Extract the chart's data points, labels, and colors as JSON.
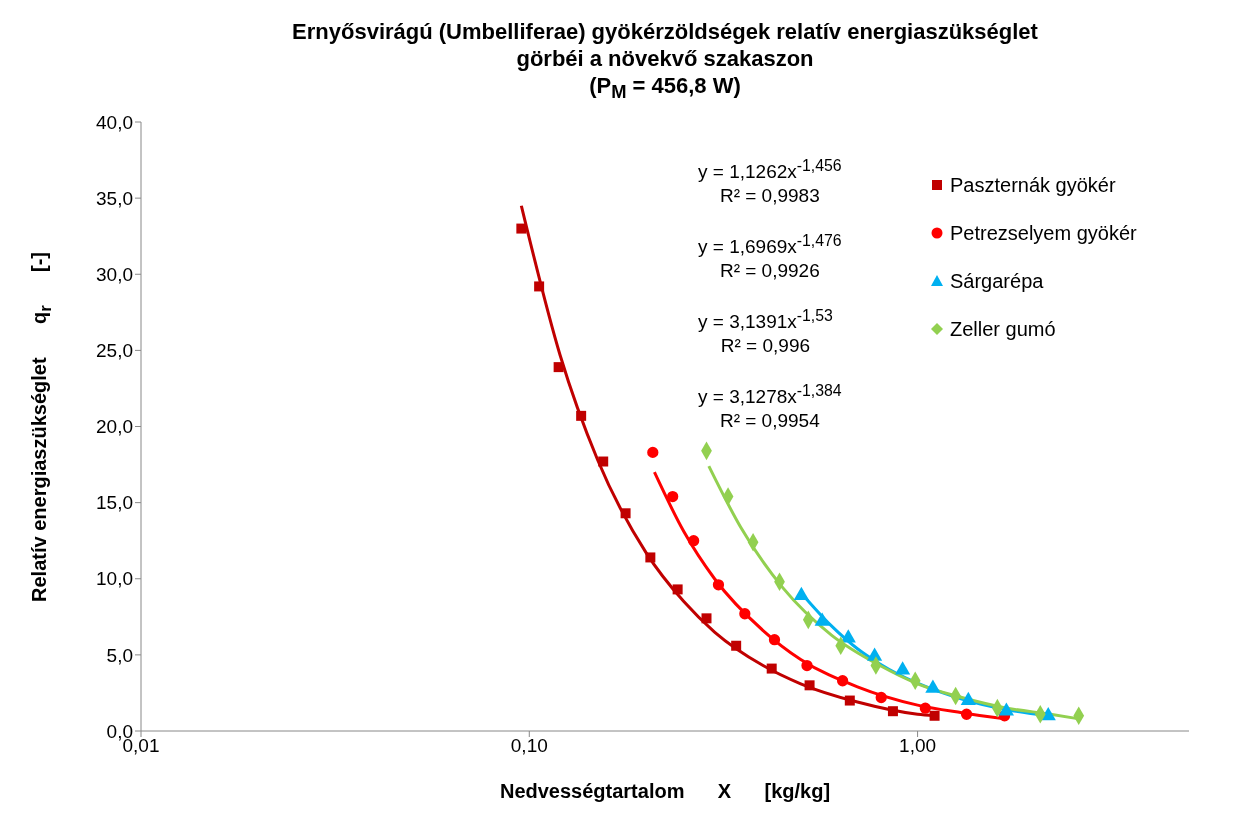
{
  "chart_data": {
    "type": "scatter",
    "title": "Ernyősvirágú (Umbelliferae) gyökérzöldségek relatív energiaszükséglet\ngörbéi a növekvő szakaszon\n(P$_{M}$ = 456,8 W)",
    "xlabel": "Nedvességtartalom      X      [kg/kg]",
    "ylabel": "Relatív energiaszükséglet      q$_{r}$      [-]",
    "log": "x",
    "xlim": [
      0.01,
      5
    ],
    "xticks": [
      {
        "value": 0.01,
        "label": "0,01"
      },
      {
        "value": 0.1,
        "label": "0,10"
      },
      {
        "value": 1,
        "label": "1,00"
      }
    ],
    "ylim": [
      0,
      40
    ],
    "yticks": [
      {
        "value": 0,
        "label": "0,0"
      },
      {
        "value": 5,
        "label": "5,0"
      },
      {
        "value": 10,
        "label": "10,0"
      },
      {
        "value": 15,
        "label": "15,0"
      },
      {
        "value": 20,
        "label": "20,0"
      },
      {
        "value": 25,
        "label": "25,0"
      },
      {
        "value": 30,
        "label": "30,0"
      },
      {
        "value": 35,
        "label": "35,0"
      },
      {
        "value": 40,
        "label": "40,0"
      }
    ],
    "grid": false,
    "legend": "top right",
    "annotations": [
      "y = 1,1262x$^{-1,456}$\nR² = 0,9983",
      "y = 1,6969x$^{-1,476}$\nR² = 0,9926",
      "y = 3,1391x$^{-1,53}$\nR² = 0,996",
      "y = 3,1278x$^{-1,384}$\nR² = 0,9954"
    ],
    "series": [
      {
        "type": "line",
        "color": "#c00000",
        "x": [
          0.0954,
          0.12,
          0.15,
          0.2,
          0.25,
          0.3,
          0.4,
          0.5,
          0.7,
          1.0,
          1.106
        ],
        "values": [
          34.5,
          24.7,
          17.8,
          11.7,
          8.5,
          6.5,
          4.3,
          3.1,
          1.9,
          1.1,
          1.0
        ]
      },
      {
        "type": "line",
        "color": "#ff0000",
        "x": [
          0.21,
          0.25,
          0.3,
          0.4,
          0.5,
          0.7,
          1.0,
          1.3,
          1.675
        ],
        "values": [
          17.0,
          13.1,
          10.0,
          6.6,
          4.7,
          2.9,
          1.7,
          1.2,
          0.8
        ]
      },
      {
        "type": "line",
        "color": "#00b0f0",
        "x": [
          0.5,
          0.6,
          0.7,
          0.8,
          1.3,
          1.7,
          2.17
        ],
        "values": [
          9.1,
          6.9,
          5.4,
          4.4,
          2.1,
          1.4,
          1.0
        ]
      },
      {
        "type": "line",
        "color": "#92d050",
        "x": [
          0.29,
          0.35,
          0.45,
          0.6,
          0.8,
          1.0,
          1.3,
          1.7,
          2.2,
          2.6
        ],
        "values": [
          17.4,
          13.4,
          9.4,
          6.3,
          4.3,
          3.1,
          2.2,
          1.5,
          1.1,
          0.8
        ]
      },
      {
        "name": "Paszternák gyökér",
        "color": "#c00000",
        "marker": "square",
        "x": [
          0.0954,
          0.106,
          0.119,
          0.136,
          0.155,
          0.177,
          0.205,
          0.241,
          0.286,
          0.341,
          0.421,
          0.527,
          0.669,
          0.864,
          1.106
        ],
        "values": [
          33.0,
          29.2,
          23.9,
          20.7,
          17.7,
          14.3,
          11.4,
          9.3,
          7.4,
          5.6,
          4.1,
          3.0,
          2.0,
          1.3,
          1.0
        ]
      },
      {
        "name": "Petrezselyem gyökér",
        "color": "#ff0000",
        "marker": "circle",
        "x": [
          0.208,
          0.234,
          0.265,
          0.307,
          0.359,
          0.428,
          0.519,
          0.641,
          0.806,
          1.047,
          1.337,
          1.675
        ],
        "values": [
          18.3,
          15.4,
          12.5,
          9.6,
          7.7,
          6.0,
          4.3,
          3.3,
          2.2,
          1.5,
          1.1,
          1.0
        ]
      },
      {
        "name": "Sárgarépa",
        "color": "#00b0f0",
        "marker": "triangle",
        "x": [
          0.502,
          0.568,
          0.663,
          0.775,
          0.915,
          1.095,
          1.351,
          1.693,
          2.17
        ],
        "values": [
          8.9,
          7.2,
          6.1,
          4.9,
          4.0,
          2.8,
          2.0,
          1.3,
          1.0
        ]
      },
      {
        "name": "Zeller gumó",
        "color": "#92d050",
        "marker": "diamond",
        "x": [
          0.286,
          0.325,
          0.377,
          0.441,
          0.523,
          0.634,
          0.781,
          0.986,
          1.253,
          1.605,
          2.07,
          2.6
        ],
        "values": [
          18.4,
          15.4,
          12.4,
          9.8,
          7.3,
          5.6,
          4.3,
          3.3,
          2.3,
          1.5,
          1.1,
          1.0
        ]
      }
    ]
  }
}
